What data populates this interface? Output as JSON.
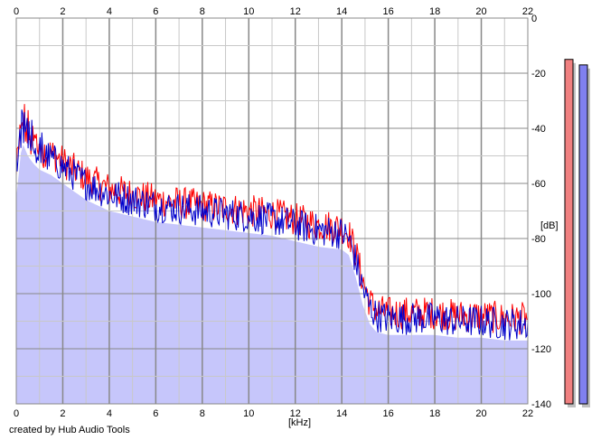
{
  "footer_text": "created by Hub Audio Tools",
  "chart_data": {
    "type": "line",
    "title": "",
    "xlabel": "[kHz]",
    "ylabel": "[dB]",
    "xlim": [
      0,
      22
    ],
    "ylim": [
      -140,
      0
    ],
    "x_ticks": [
      "0",
      "2",
      "4",
      "6",
      "8",
      "10",
      "12",
      "14",
      "16",
      "18",
      "20",
      "22"
    ],
    "y_ticks": [
      "0",
      "-20",
      "-40",
      "-60",
      "-80",
      "-100",
      "-120",
      "-140"
    ],
    "grid": true,
    "colors": {
      "left": "#ff0000",
      "right": "#0000cc",
      "fill": "#c6c6fb",
      "major_grid": "#888888",
      "minor_grid": "#c8c8c8",
      "meter_left": "#f08080",
      "meter_right": "#8080f0"
    },
    "series": [
      {
        "x": [
          0.0,
          0.25,
          0.5,
          0.75,
          1.0,
          1.5,
          2.0,
          2.5,
          3.0,
          3.5,
          4.0,
          5.0,
          6.0,
          7.0,
          8.0,
          9.0,
          10.0,
          11.0,
          12.0,
          13.0,
          14.0,
          14.3,
          14.6,
          14.9,
          15.2,
          15.5,
          16.0,
          17.0,
          18.0,
          19.0,
          20.0,
          21.0,
          22.0
        ],
        "y": [
          -57,
          -37,
          -42,
          -45,
          -47,
          -49,
          -52,
          -55,
          -58,
          -60,
          -62,
          -64,
          -66,
          -67,
          -68,
          -69,
          -70,
          -71,
          -73,
          -75,
          -76,
          -78,
          -85,
          -95,
          -103,
          -106,
          -107,
          -107,
          -107,
          -108,
          -108,
          -109,
          -109
        ]
      },
      {
        "x": [
          0.0,
          0.25,
          0.5,
          0.75,
          1.0,
          1.5,
          2.0,
          2.5,
          3.0,
          3.5,
          4.0,
          5.0,
          6.0,
          7.0,
          8.0,
          9.0,
          10.0,
          11.0,
          12.0,
          13.0,
          14.0,
          14.3,
          14.6,
          14.9,
          15.2,
          15.5,
          16.0,
          17.0,
          18.0,
          19.0,
          20.0,
          21.0,
          22.0
        ],
        "y": [
          -59,
          -39,
          -44,
          -47,
          -49,
          -51,
          -54,
          -57,
          -60,
          -62,
          -64,
          -66,
          -68,
          -69,
          -70,
          -71,
          -72,
          -73,
          -75,
          -77,
          -78,
          -80,
          -88,
          -98,
          -105,
          -108,
          -109,
          -109,
          -109,
          -110,
          -110,
          -111,
          -111
        ]
      }
    ],
    "meters": [
      {
        "value": -15,
        "color": "#f08080"
      },
      {
        "value": -17,
        "color": "#8080f0"
      }
    ]
  }
}
